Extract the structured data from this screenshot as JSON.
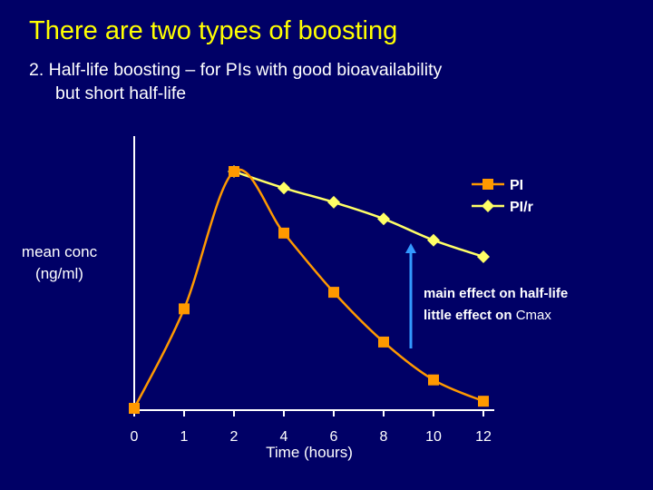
{
  "slide": {
    "title": "There are two types of boosting",
    "subtitle_line1": "2. Half-life boosting – for PIs with good bioavailability",
    "subtitle_line2": "but short half-life"
  },
  "chart_data": {
    "type": "line",
    "title": "",
    "xlabel": "Time (hours)",
    "ylabel": "mean conc (ng/ml)",
    "categories": [
      "0",
      "1",
      "2",
      "4",
      "6",
      "8",
      "10",
      "12"
    ],
    "y_ticks_shown": false,
    "ylim": [
      0,
      100
    ],
    "legend_position": "top-right",
    "series": [
      {
        "name": "PI",
        "color": "#ff9900",
        "marker": "square",
        "x": [
          "0",
          "1",
          "2",
          "4",
          "6",
          "8",
          "10",
          "12"
        ],
        "values": [
          0,
          42,
          100,
          74,
          49,
          28,
          12,
          3
        ]
      },
      {
        "name": "PI/r",
        "color": "#ffff66",
        "marker": "diamond",
        "x": [
          "2",
          "4",
          "6",
          "8",
          "10",
          "12"
        ],
        "values": [
          100,
          93,
          87,
          80,
          71,
          64
        ]
      }
    ],
    "annotation": {
      "line1": "main effect on half-life",
      "line2_prefix": "little effect on ",
      "line2_term": "Cmax",
      "arrow_color": "#3399ff"
    }
  }
}
